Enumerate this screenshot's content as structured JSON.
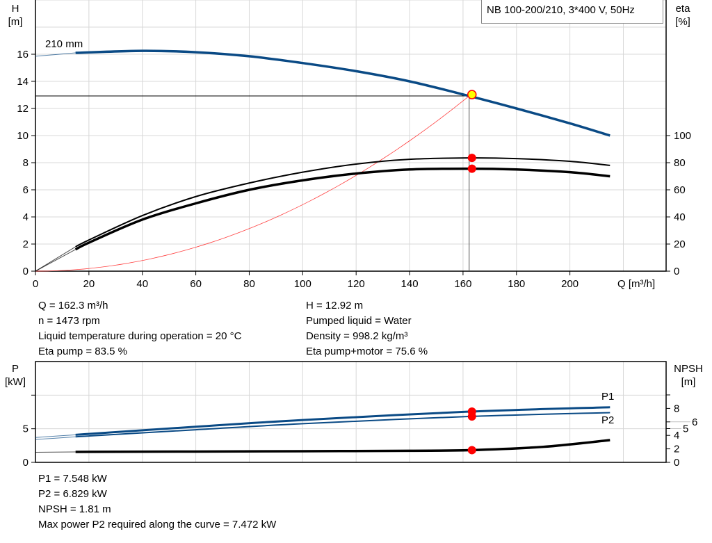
{
  "chart_data": [
    {
      "type": "line",
      "title": "NB 100-200/210, 3*400 V, 50Hz",
      "xlabel": "Q [m³/h]",
      "ylabel": "H\n[m]",
      "ylabel_right": "eta\n[%]",
      "xlim": [
        0,
        236
      ],
      "ylim": [
        0,
        20
      ],
      "ylim_right": [
        0,
        200
      ],
      "x_ticks": [
        0,
        20,
        40,
        60,
        80,
        100,
        120,
        140,
        160,
        180,
        200
      ],
      "y_ticks": [
        0,
        2,
        4,
        6,
        8,
        10,
        12,
        14,
        16
      ],
      "y_right_ticks": [
        0,
        20,
        40,
        60,
        80,
        100
      ],
      "grid": true,
      "annotation": "210 mm",
      "series": [
        {
          "key": "H",
          "axis": "left",
          "color": "#0a4a85",
          "x": [
            0,
            15,
            40,
            60,
            80,
            100,
            120,
            140,
            162.3,
            180,
            200,
            215
          ],
          "y": [
            15.85,
            16.1,
            16.25,
            16.15,
            15.85,
            15.35,
            14.75,
            14.0,
            12.92,
            12.0,
            10.9,
            10.0
          ]
        },
        {
          "key": "eta_pump",
          "axis": "right",
          "color": "#000000",
          "x": [
            0,
            15,
            20,
            40,
            60,
            80,
            100,
            120,
            140,
            162.3,
            180,
            200,
            215
          ],
          "y": [
            0,
            18,
            23,
            41,
            55,
            65,
            73,
            79,
            82.5,
            83.5,
            83,
            81,
            78
          ]
        },
        {
          "key": "eta_pump_motor",
          "axis": "right",
          "color": "#000000",
          "x": [
            0,
            15,
            20,
            40,
            60,
            80,
            100,
            120,
            140,
            162.3,
            180,
            200,
            215
          ],
          "y": [
            0,
            16,
            21,
            38,
            50,
            60,
            67,
            72,
            75,
            75.6,
            75,
            73,
            70
          ]
        },
        {
          "key": "system_curve",
          "axis": "left",
          "color": "#ff4040",
          "equation": "H = 12.92*(Q/162.3)^2"
        }
      ],
      "duty_point": {
        "Q": 162.3,
        "H": 12.92,
        "eta_pump": 83.5,
        "eta_pump_motor": 75.6
      }
    },
    {
      "type": "line",
      "ylabel": "P\n[kW]",
      "ylabel_right": "NPSH\n[m]",
      "xlim": [
        0,
        236
      ],
      "ylim": [
        0,
        15
      ],
      "y_ticks": [
        0,
        5,
        10
      ],
      "y_tick_labels": [
        "0",
        "5",
        ""
      ],
      "y_right_ticks": [
        0,
        2,
        4,
        5,
        6,
        8,
        10
      ],
      "y_right_tick_labels": [
        "0",
        "2",
        "4",
        "5",
        "6",
        "8",
        ""
      ],
      "grid": true,
      "series": [
        {
          "name": "P1",
          "axis": "left",
          "color": "#0a4a85",
          "x": [
            0,
            15,
            60,
            100,
            162.3,
            215
          ],
          "y": [
            3.7,
            4.1,
            5.3,
            6.3,
            7.548,
            8.2
          ]
        },
        {
          "name": "P2",
          "axis": "left",
          "color": "#0a4a85",
          "x": [
            0,
            15,
            60,
            100,
            162.3,
            215
          ],
          "y": [
            3.4,
            3.8,
            4.85,
            5.75,
            6.829,
            7.4
          ]
        },
        {
          "key": "NPSH",
          "axis": "right",
          "color": "#000000",
          "x": [
            0,
            15,
            60,
            100,
            140,
            162.3,
            190,
            215
          ],
          "y": [
            1.5,
            1.55,
            1.6,
            1.65,
            1.72,
            1.81,
            2.3,
            3.3
          ]
        }
      ],
      "duty_point": {
        "Q": 162.3,
        "P1": 7.548,
        "P2": 6.829,
        "NPSH": 1.81
      }
    }
  ],
  "info_top": {
    "left": [
      "Q = 162.3 m³/h",
      "n = 1473 rpm",
      "Liquid temperature during operation = 20 °C",
      "Eta pump = 83.5 %"
    ],
    "right": [
      "H = 12.92 m",
      "Pumped liquid = Water",
      "Density = 998.2 kg/m³",
      "Eta pump+motor = 75.6 %"
    ]
  },
  "info_bottom": [
    "P1 = 7.548 kW",
    "P2 = 6.829 kW",
    "NPSH = 1.81 m",
    "Max power P2 required along the curve = 7.472 kW"
  ],
  "colors": {
    "pump_curve": "#0a4a85",
    "duty_marker": "#ff0000",
    "duty_fill": "#ffff00",
    "grid": "#d8d8d8"
  }
}
